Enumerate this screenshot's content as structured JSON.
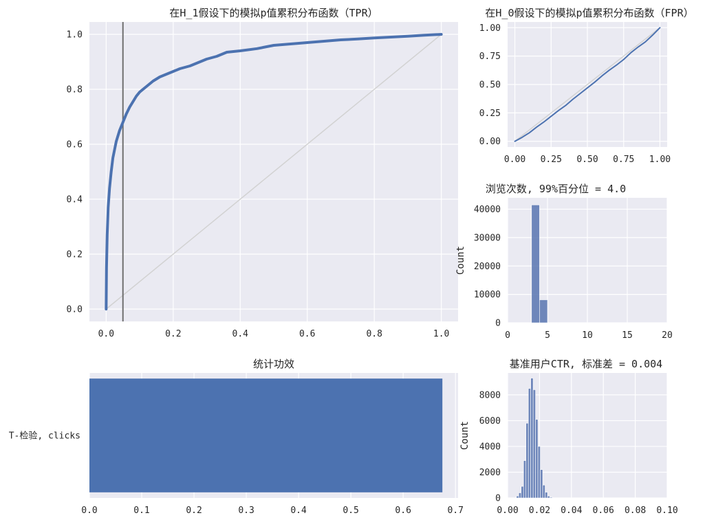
{
  "colors": {
    "series": "#4c72b0",
    "hist_fill": "#5874b0",
    "diagonal": "#d2d2d2",
    "vline": "#6e6e6e",
    "background": "#eaeaf2",
    "grid": "#ffffff"
  },
  "chart_data": [
    {
      "id": "tpr",
      "type": "line",
      "title": "在H_1假设下的模拟p值累积分布函数（TPR）",
      "xlabel": "",
      "ylabel": "",
      "xlim": [
        -0.05,
        1.05
      ],
      "ylim": [
        -0.045,
        1.045
      ],
      "xticks": [
        0.0,
        0.2,
        0.4,
        0.6,
        0.8,
        1.0
      ],
      "yticks": [
        0.0,
        0.2,
        0.4,
        0.6,
        0.8,
        1.0
      ],
      "xtick_labels": [
        "0.0",
        "0.2",
        "0.4",
        "0.6",
        "0.8",
        "1.0"
      ],
      "ytick_labels": [
        "0.0",
        "0.2",
        "0.4",
        "0.6",
        "0.8",
        "1.0"
      ],
      "grid": true,
      "vline_x": 0.05,
      "reference_line": [
        [
          0,
          0
        ],
        [
          1,
          1
        ]
      ],
      "series": [
        {
          "x": [
            0.0,
            0.001,
            0.003,
            0.006,
            0.01,
            0.015,
            0.02,
            0.03,
            0.04,
            0.05,
            0.06,
            0.07,
            0.08,
            0.09,
            0.1,
            0.12,
            0.14,
            0.16,
            0.18,
            0.2,
            0.22,
            0.25,
            0.28,
            0.3,
            0.33,
            0.36,
            0.4,
            0.45,
            0.5,
            0.55,
            0.6,
            0.65,
            0.7,
            0.75,
            0.8,
            0.85,
            0.9,
            0.95,
            1.0
          ],
          "y": [
            0.0,
            0.15,
            0.27,
            0.37,
            0.44,
            0.5,
            0.55,
            0.61,
            0.65,
            0.68,
            0.71,
            0.735,
            0.755,
            0.775,
            0.79,
            0.81,
            0.83,
            0.845,
            0.855,
            0.865,
            0.875,
            0.885,
            0.9,
            0.91,
            0.92,
            0.935,
            0.94,
            0.948,
            0.96,
            0.965,
            0.97,
            0.975,
            0.98,
            0.983,
            0.987,
            0.99,
            0.993,
            0.997,
            1.0
          ]
        }
      ]
    },
    {
      "id": "fpr",
      "type": "line",
      "title": "在H_0假设下的模拟p值累积分布函数（FPR）",
      "xlabel": "",
      "ylabel": "",
      "xlim": [
        -0.05,
        1.05
      ],
      "ylim": [
        -0.05,
        1.05
      ],
      "xticks": [
        0.0,
        0.25,
        0.5,
        0.75,
        1.0
      ],
      "yticks": [
        0.0,
        0.25,
        0.5,
        0.75,
        1.0
      ],
      "xtick_labels": [
        "0.00",
        "0.25",
        "0.50",
        "0.75",
        "1.00"
      ],
      "ytick_labels": [
        "0.00",
        "0.25",
        "0.50",
        "0.75",
        "1.00"
      ],
      "grid": true,
      "reference_line": [
        [
          0,
          0
        ],
        [
          1,
          1
        ]
      ],
      "series": [
        {
          "x": [
            0.0,
            0.05,
            0.1,
            0.15,
            0.2,
            0.25,
            0.3,
            0.35,
            0.4,
            0.45,
            0.5,
            0.55,
            0.6,
            0.65,
            0.7,
            0.75,
            0.8,
            0.85,
            0.9,
            0.95,
            1.0
          ],
          "y": [
            0.0,
            0.035,
            0.075,
            0.125,
            0.17,
            0.22,
            0.27,
            0.315,
            0.37,
            0.42,
            0.47,
            0.52,
            0.575,
            0.625,
            0.67,
            0.72,
            0.78,
            0.83,
            0.875,
            0.935,
            1.0
          ]
        }
      ]
    },
    {
      "id": "views",
      "type": "bar",
      "title": "浏览次数, 99%百分位 = 4.0",
      "xlabel": "",
      "ylabel": "Count",
      "xlim": [
        0,
        20
      ],
      "ylim": [
        0,
        44000
      ],
      "xticks": [
        0,
        5,
        10,
        15,
        20
      ],
      "yticks": [
        0,
        10000,
        20000,
        30000,
        40000
      ],
      "xtick_labels": [
        "0",
        "5",
        "10",
        "15",
        "20"
      ],
      "ytick_labels": [
        "0",
        "10000",
        "20000",
        "30000",
        "40000"
      ],
      "grid": true,
      "bins": [
        {
          "x0": 3.0,
          "x1": 4.0,
          "count": 41500
        },
        {
          "x0": 4.0,
          "x1": 5.0,
          "count": 8100
        }
      ]
    },
    {
      "id": "power",
      "type": "bar",
      "orientation": "horizontal",
      "title": "统计功效",
      "xlabel": "",
      "ylabel": "",
      "xlim": [
        0,
        0.705
      ],
      "xticks": [
        0.0,
        0.1,
        0.2,
        0.3,
        0.4,
        0.5,
        0.6,
        0.7
      ],
      "xtick_labels": [
        "0.0",
        "0.1",
        "0.2",
        "0.3",
        "0.4",
        "0.5",
        "0.6",
        "0.7"
      ],
      "grid": true,
      "categories": [
        "T-检验, clicks"
      ],
      "values": [
        0.675
      ]
    },
    {
      "id": "ctr",
      "type": "bar",
      "title": "基准用户CTR, 标准差 = 0.004",
      "xlabel": "",
      "ylabel": "Count",
      "xlim": [
        0,
        0.1
      ],
      "ylim": [
        0,
        9700
      ],
      "xticks": [
        0.0,
        0.02,
        0.04,
        0.06,
        0.08,
        0.1
      ],
      "yticks": [
        0,
        2000,
        4000,
        6000,
        8000
      ],
      "xtick_labels": [
        "0.00",
        "0.02",
        "0.04",
        "0.06",
        "0.08",
        "0.10"
      ],
      "ytick_labels": [
        "0",
        "2000",
        "4000",
        "6000",
        "8000"
      ],
      "grid": true,
      "bins": [
        {
          "x0": 0.0055,
          "x1": 0.007,
          "count": 150
        },
        {
          "x0": 0.007,
          "x1": 0.0085,
          "count": 400
        },
        {
          "x0": 0.0085,
          "x1": 0.01,
          "count": 900
        },
        {
          "x0": 0.01,
          "x1": 0.0115,
          "count": 2900
        },
        {
          "x0": 0.0115,
          "x1": 0.013,
          "count": 5800
        },
        {
          "x0": 0.013,
          "x1": 0.0145,
          "count": 8500
        },
        {
          "x0": 0.0145,
          "x1": 0.016,
          "count": 9300
        },
        {
          "x0": 0.016,
          "x1": 0.0175,
          "count": 8400
        },
        {
          "x0": 0.0175,
          "x1": 0.019,
          "count": 6100
        },
        {
          "x0": 0.019,
          "x1": 0.0205,
          "count": 4000
        },
        {
          "x0": 0.0205,
          "x1": 0.022,
          "count": 2200
        },
        {
          "x0": 0.022,
          "x1": 0.0235,
          "count": 1000
        },
        {
          "x0": 0.0235,
          "x1": 0.025,
          "count": 450
        },
        {
          "x0": 0.025,
          "x1": 0.0265,
          "count": 150
        },
        {
          "x0": 0.0265,
          "x1": 0.028,
          "count": 60
        }
      ]
    }
  ]
}
